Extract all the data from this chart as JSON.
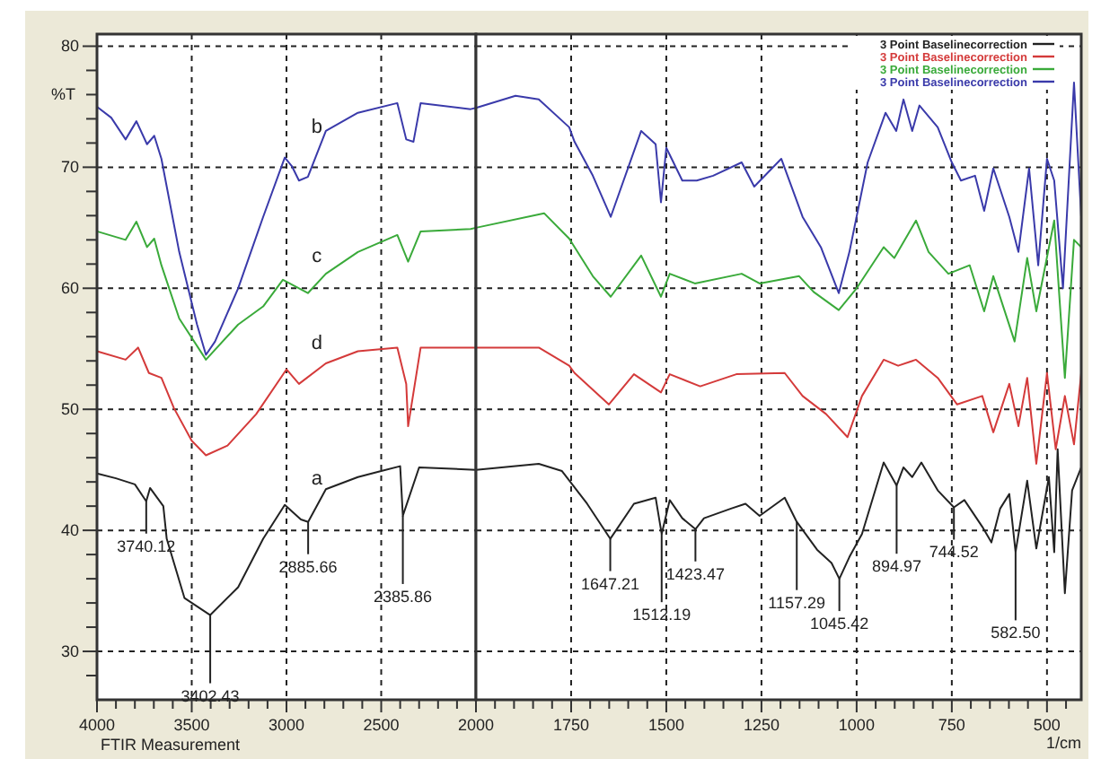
{
  "chart_data": [
    {
      "type": "line",
      "ylabel": "%T",
      "xlim": [
        4000,
        2000
      ],
      "ylim": [
        26,
        81
      ],
      "xticks": [
        4000,
        {
          "value": 3900,
          "label": null
        },
        {
          "value": 3800,
          "label": null
        },
        {
          "value": 3700,
          "label": null
        },
        {
          "value": 3600,
          "label": null
        },
        3500,
        {
          "value": 3400,
          "label": null
        },
        {
          "value": 3300,
          "label": null
        },
        {
          "value": 3200,
          "label": null
        },
        {
          "value": 3100,
          "label": null
        },
        3000,
        {
          "value": 2900,
          "label": null
        },
        {
          "value": 2800,
          "label": null
        },
        {
          "value": 2700,
          "label": null
        },
        {
          "value": 2600,
          "label": null
        },
        2500,
        {
          "value": 2400,
          "label": null
        },
        {
          "value": 2300,
          "label": null
        },
        {
          "value": 2200,
          "label": null
        },
        {
          "value": 2100,
          "label": null
        },
        {
          "value": 2000,
          "label": null
        }
      ],
      "yticks": [
        {
          "value": 28,
          "label": null
        },
        30,
        {
          "value": 32,
          "label": null
        },
        {
          "value": 34,
          "label": null
        },
        {
          "value": 36,
          "label": null
        },
        {
          "value": 38,
          "label": null
        },
        40,
        {
          "value": 42,
          "label": null
        },
        {
          "value": 44,
          "label": null
        },
        {
          "value": 46,
          "label": null
        },
        {
          "value": 48,
          "label": null
        },
        50,
        {
          "value": 52,
          "label": null
        },
        {
          "value": 54,
          "label": null
        },
        {
          "value": 56,
          "label": null
        },
        {
          "value": 58,
          "label": null
        },
        60,
        {
          "value": 62,
          "label": null
        },
        {
          "value": 64,
          "label": null
        },
        {
          "value": 66,
          "label": null
        },
        {
          "value": 68,
          "label": null
        },
        70,
        {
          "value": 72,
          "label": null
        },
        {
          "value": 74,
          "label": null
        },
        {
          "value": 76,
          "label": null
        },
        {
          "value": 78,
          "label": null
        },
        80
      ],
      "grid": true,
      "line_style": "solid",
      "series": [
        {
          "name": "a",
          "color": "#222222",
          "x": [
            4000,
            3900,
            3800,
            3740.12,
            3720,
            3650,
            3632,
            3538,
            3402.43,
            3255,
            3123,
            3009,
            2924,
            2885.66,
            2792,
            2623,
            2500,
            2400,
            2385.86,
            2300,
            2000
          ],
          "values": [
            44.7,
            44.3,
            43.8,
            42.4,
            43.5,
            42,
            39.3,
            34.4,
            33.0,
            35.3,
            39.3,
            42.1,
            40.9,
            40.7,
            43.4,
            44.4,
            44.9,
            45.3,
            41.2,
            45.2,
            45.0
          ]
        },
        {
          "name": "d",
          "color": "#d43a3a",
          "x": [
            4000,
            3849,
            3783,
            3726,
            3660,
            3594,
            3500,
            3425,
            3311,
            3160,
            3000,
            2934,
            2792,
            2623,
            2415,
            2368,
            2358,
            2292,
            2028,
            2000
          ],
          "values": [
            54.8,
            54.1,
            55.1,
            53.0,
            52.6,
            50.1,
            47.4,
            46.2,
            47.0,
            49.6,
            53.3,
            52.1,
            53.8,
            54.8,
            55.1,
            52.1,
            48.6,
            55.1,
            55.1,
            55.1
          ]
        },
        {
          "name": "c",
          "color": "#3aaa3a",
          "x": [
            4000,
            3849,
            3792,
            3736,
            3698,
            3660,
            3566,
            3425,
            3255,
            3123,
            3019,
            2887,
            2792,
            2623,
            2415,
            2358,
            2292,
            2028,
            2000
          ],
          "values": [
            64.7,
            64.0,
            65.5,
            63.4,
            64.1,
            61.9,
            57.5,
            54.1,
            57.0,
            58.5,
            60.7,
            59.6,
            61.2,
            63.0,
            64.4,
            62.2,
            64.7,
            64.9,
            65.0
          ]
        },
        {
          "name": "b",
          "color": "#3a3aaa",
          "x": [
            4000,
            3925,
            3849,
            3792,
            3736,
            3698,
            3660,
            3566,
            3472,
            3425,
            3377,
            3255,
            3123,
            3009,
            2972,
            2934,
            2887,
            2792,
            2623,
            2415,
            2368,
            2330,
            2292,
            2028,
            2000
          ],
          "values": [
            75.0,
            74.1,
            72.3,
            73.8,
            71.9,
            72.6,
            70.7,
            63.0,
            57.0,
            54.5,
            55.6,
            60.0,
            65.9,
            70.8,
            70.1,
            68.9,
            69.2,
            73.0,
            74.5,
            75.3,
            72.3,
            72.1,
            75.3,
            74.8,
            74.9
          ]
        }
      ],
      "annotations": [
        {
          "text": "3740.12",
          "x": 3740.12,
          "y": 42.4
        },
        {
          "text": "3402.43",
          "x": 3402.43,
          "y": 33.0
        },
        {
          "text": "2885.66",
          "x": 2885.66,
          "y": 40.7
        },
        {
          "text": "2385.86",
          "x": 2385.86,
          "y": 41.2
        },
        "FTIR Measurement"
      ]
    },
    {
      "type": "line",
      "xlabel": "1/cm",
      "xlim": [
        2000,
        410
      ],
      "ylim": [
        26,
        81
      ],
      "tick_labels": "x",
      "xticks": [
        2000,
        {
          "value": 1950,
          "label": null
        },
        {
          "value": 1900,
          "label": null
        },
        {
          "value": 1850,
          "label": null
        },
        {
          "value": 1800,
          "label": null
        },
        1750,
        {
          "value": 1700,
          "label": null
        },
        {
          "value": 1650,
          "label": null
        },
        {
          "value": 1600,
          "label": null
        },
        {
          "value": 1550,
          "label": null
        },
        1500,
        {
          "value": 1450,
          "label": null
        },
        {
          "value": 1400,
          "label": null
        },
        {
          "value": 1350,
          "label": null
        },
        {
          "value": 1300,
          "label": null
        },
        1250,
        {
          "value": 1200,
          "label": null
        },
        {
          "value": 1150,
          "label": null
        },
        {
          "value": 1100,
          "label": null
        },
        {
          "value": 1050,
          "label": null
        },
        1000,
        {
          "value": 950,
          "label": null
        },
        {
          "value": 900,
          "label": null
        },
        {
          "value": 850,
          "label": null
        },
        {
          "value": 800,
          "label": null
        },
        750,
        {
          "value": 700,
          "label": null
        },
        {
          "value": 650,
          "label": null
        },
        {
          "value": 600,
          "label": null
        },
        {
          "value": 550,
          "label": null
        },
        500,
        {
          "value": 450,
          "label": null
        }
      ],
      "yticks": [
        30,
        40,
        50,
        60,
        70,
        80
      ],
      "grid": true,
      "legend": "top right",
      "line_style": "solid",
      "series": [
        {
          "name": "3 Point Baselinecorrection",
          "color": "#222222",
          "x": [
            2000,
            1835,
            1774,
            1708,
            1647.21,
            1585,
            1528,
            1512.19,
            1491,
            1458,
            1423.47,
            1401,
            1330,
            1292,
            1255,
            1189,
            1157.29,
            1104,
            1066,
            1045.42,
            1019,
            986,
            929,
            894.97,
            877,
            854,
            830,
            787,
            744.52,
            717,
            670,
            646,
            623,
            599,
            582.5,
            552,
            528,
            495,
            481,
            472,
            453,
            434,
            410
          ],
          "values": [
            45.0,
            45.5,
            44.9,
            42.2,
            39.3,
            42.2,
            42.7,
            39.7,
            42.5,
            41.0,
            40.1,
            41.0,
            41.8,
            42.2,
            41.2,
            42.7,
            40.7,
            38.4,
            37.3,
            36.0,
            37.8,
            39.7,
            45.6,
            43.7,
            45.2,
            44.4,
            45.6,
            43.3,
            41.9,
            42.5,
            40.3,
            39.0,
            41.8,
            43.0,
            38.2,
            44.1,
            38.5,
            44.4,
            38.2,
            46.7,
            34.8,
            43.3,
            45.2
          ]
        },
        {
          "name": "3 Point Baselinecorrection",
          "color": "#d43a3a",
          "x": [
            2000,
            1835,
            1755,
            1741,
            1651,
            1585,
            1514,
            1491,
            1411,
            1316,
            1189,
            1142,
            1080,
            1024,
            986,
            929,
            891,
            844,
            787,
            736,
            670,
            641,
            599,
            575,
            552,
            528,
            500,
            477,
            453,
            429,
            410
          ],
          "values": [
            55.1,
            55.1,
            53.6,
            53.0,
            50.4,
            52.9,
            51.4,
            52.9,
            51.9,
            52.9,
            53.0,
            51.1,
            49.6,
            47.7,
            51.1,
            54.1,
            53.6,
            54.1,
            52.6,
            50.4,
            51.1,
            48.1,
            52.1,
            48.6,
            52.6,
            45.5,
            53.0,
            46.7,
            51.1,
            47.1,
            53.0
          ]
        },
        {
          "name": "3 Point Baselinecorrection",
          "color": "#3aaa3a",
          "x": [
            2000,
            1821,
            1755,
            1693,
            1646,
            1566,
            1514,
            1491,
            1425,
            1302,
            1255,
            1151,
            1113,
            1047,
            1000,
            929,
            901,
            844,
            811,
            759,
            703,
            665,
            641,
            585,
            552,
            528,
            481,
            453,
            429,
            410
          ],
          "values": [
            65.0,
            66.2,
            64.1,
            61.0,
            59.3,
            62.7,
            59.3,
            61.2,
            60.4,
            61.2,
            60.4,
            61.0,
            59.7,
            58.2,
            60.0,
            63.4,
            62.5,
            65.6,
            63.0,
            61.2,
            61.9,
            58.1,
            61.0,
            55.6,
            62.5,
            58.1,
            65.6,
            52.6,
            64.0,
            63.4
          ]
        },
        {
          "name": "3 Point Baselinecorrection",
          "color": "#3a3aaa",
          "x": [
            2000,
            1896,
            1835,
            1755,
            1741,
            1693,
            1646,
            1566,
            1528,
            1514,
            1500,
            1458,
            1420,
            1377,
            1302,
            1269,
            1198,
            1142,
            1094,
            1047,
            1019,
            971,
            924,
            896,
            877,
            854,
            835,
            787,
            750,
            726,
            689,
            665,
            641,
            599,
            575,
            547,
            523,
            500,
            481,
            458,
            429,
            410
          ],
          "values": [
            74.9,
            75.9,
            75.6,
            73.3,
            72.1,
            69.3,
            65.9,
            73.0,
            71.9,
            67.1,
            71.6,
            68.9,
            68.9,
            69.3,
            70.4,
            68.4,
            70.7,
            65.9,
            63.4,
            59.6,
            63.0,
            70.4,
            74.5,
            73.0,
            75.6,
            73.0,
            75.1,
            73.3,
            70.4,
            68.9,
            69.3,
            66.4,
            69.9,
            65.9,
            63.0,
            69.9,
            61.9,
            70.7,
            68.9,
            60.0,
            77.0,
            65.9
          ]
        }
      ],
      "annotations": [
        {
          "text": "1647.21",
          "x": 1647.21,
          "y": 39.3
        },
        {
          "text": "1512.19",
          "x": 1512.19,
          "y": 39.7
        },
        {
          "text": "1423.47",
          "x": 1423.47,
          "y": 40.1
        },
        {
          "text": "1157.29",
          "x": 1157.29,
          "y": 40.7
        },
        {
          "text": "1045.42",
          "x": 1045.42,
          "y": 36.0
        },
        {
          "text": "894.97",
          "x": 894.97,
          "y": 43.7
        },
        {
          "text": "744.52",
          "x": 744.52,
          "y": 41.9
        },
        {
          "text": "582.50",
          "x": 582.5,
          "y": 38.2
        }
      ]
    }
  ]
}
